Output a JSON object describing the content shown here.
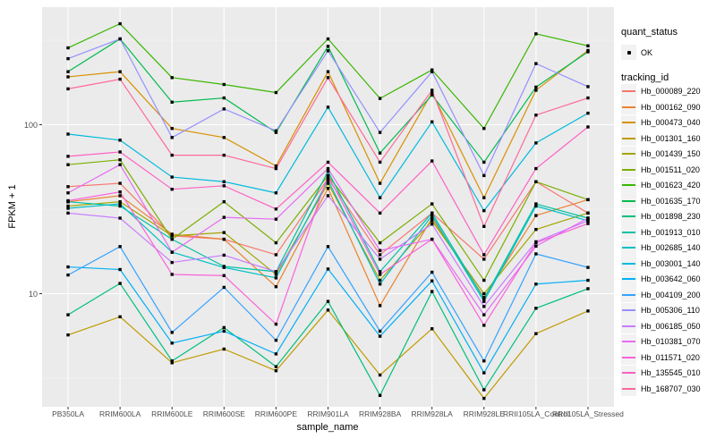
{
  "chart_data": {
    "type": "line",
    "xlabel": "sample_name",
    "ylabel": "FPKM + 1",
    "y_scale": "log10",
    "y_ticks": [
      10,
      100
    ],
    "y_minor_gridlines": [
      3.162,
      31.62,
      316.2
    ],
    "ylim_approx": [
      2.1,
      520
    ],
    "grid": "on",
    "panel_background": "#EBEBEB",
    "gridline_color": "#FFFFFF",
    "marker": {
      "shape": "small-black-square",
      "color": "#000000"
    },
    "categories": [
      "PB350LA",
      "RRIM600LA",
      "RRIM600LE",
      "RRIM600SE",
      "RRIM600PE",
      "RRIM901LA",
      "RRIM928BA",
      "RRIM928LA",
      "RRIM928LE",
      "RRII105LA_Control",
      "RRII105LA_Stressed"
    ],
    "legend": {
      "position": "right",
      "quant_status_title": "quant_status",
      "quant_status_items": [
        "OK"
      ],
      "tracking_id_title": "tracking_id"
    },
    "series": [
      {
        "name": "Hb_000089_220",
        "color": "#F8766D",
        "values": [
          43,
          45,
          22,
          21,
          17,
          48,
          17,
          30,
          16,
          46,
          30
        ]
      },
      {
        "name": "Hb_000162_090",
        "color": "#EA8331",
        "values": [
          35,
          38,
          22.5,
          21,
          11,
          42,
          8.5,
          28,
          9.5,
          29,
          36
        ]
      },
      {
        "name": "Hb_000473_040",
        "color": "#D89000",
        "values": [
          192,
          206,
          95,
          84,
          57,
          206,
          45,
          155,
          37,
          160,
          275
        ]
      },
      {
        "name": "Hb_001301_160",
        "color": "#C09B00",
        "values": [
          5.7,
          7.3,
          3.9,
          4.7,
          3.5,
          8,
          3.3,
          6.2,
          2.4,
          5.8,
          7.9
        ]
      },
      {
        "name": "Hb_001439_150",
        "color": "#A3A500",
        "values": [
          33,
          35,
          22,
          23,
          13,
          45,
          12,
          27,
          10,
          24,
          30
        ]
      },
      {
        "name": "Hb_001511_020",
        "color": "#7CAE00",
        "values": [
          58,
          62,
          21,
          35,
          20,
          50,
          20,
          34,
          12,
          46,
          36
        ]
      },
      {
        "name": "Hb_001623_420",
        "color": "#39B600",
        "values": [
          285,
          396,
          190,
          173,
          155,
          322,
          143,
          211,
          95,
          345,
          293
        ]
      },
      {
        "name": "Hb_001635_170",
        "color": "#00BB4E",
        "values": [
          206,
          322,
          136,
          144,
          90,
          291,
          68,
          150,
          60,
          167,
          270
        ]
      },
      {
        "name": "Hb_001898_230",
        "color": "#00BF7D",
        "values": [
          7.5,
          11.5,
          4.0,
          6.3,
          3.7,
          9,
          2.5,
          10.3,
          2.7,
          8.2,
          10.7
        ]
      },
      {
        "name": "Hb_001913_010",
        "color": "#00C1A3",
        "values": [
          35,
          33,
          21,
          14.5,
          13.5,
          53,
          13.5,
          30,
          9.3,
          34,
          28
        ]
      },
      {
        "name": "Hb_002685_140",
        "color": "#00BFC4",
        "values": [
          32,
          34,
          17.6,
          14.3,
          12.4,
          47,
          11.4,
          29,
          9.0,
          33,
          27
        ]
      },
      {
        "name": "Hb_003001_140",
        "color": "#00BADE",
        "values": [
          88,
          81,
          49,
          46,
          39.5,
          127,
          37,
          104,
          31,
          78,
          117
        ]
      },
      {
        "name": "Hb_003642_060",
        "color": "#00B0F6",
        "values": [
          14.4,
          13.9,
          5.1,
          6.0,
          4.4,
          14,
          5.6,
          11.9,
          3.4,
          11.4,
          12.0
        ]
      },
      {
        "name": "Hb_004109_200",
        "color": "#35A2FF",
        "values": [
          12.9,
          19,
          5.9,
          10.9,
          5.3,
          19,
          6.0,
          13.4,
          4.0,
          17.2,
          14.3
        ]
      },
      {
        "name": "Hb_005306_110",
        "color": "#9590FF",
        "values": [
          246,
          322,
          84,
          124,
          92,
          274,
          90,
          206,
          50,
          230,
          168
        ]
      },
      {
        "name": "Hb_006185_050",
        "color": "#C77CFF",
        "values": [
          30,
          28,
          15.3,
          16.9,
          13.5,
          38,
          16,
          25.8,
          8.4,
          20.3,
          27
        ]
      },
      {
        "name": "Hb_010381_070",
        "color": "#E76BF3",
        "values": [
          39.5,
          58,
          17.6,
          28.3,
          27.6,
          55,
          18,
          21,
          7.5,
          19.1,
          28
        ]
      },
      {
        "name": "Hb_011571_020",
        "color": "#FA62DB",
        "values": [
          35.5,
          40,
          13,
          12.8,
          6.6,
          50,
          13,
          21,
          6.5,
          20,
          26
        ]
      },
      {
        "name": "Hb_135545_010",
        "color": "#FF61C3",
        "values": [
          65,
          69,
          41.5,
          43.5,
          31.7,
          60,
          30,
          61,
          17,
          55,
          97
        ]
      },
      {
        "name": "Hb_168707_030",
        "color": "#FF6A98",
        "values": [
          163,
          186,
          66,
          66,
          55,
          190,
          60,
          160,
          25,
          114,
          144
        ]
      }
    ]
  }
}
